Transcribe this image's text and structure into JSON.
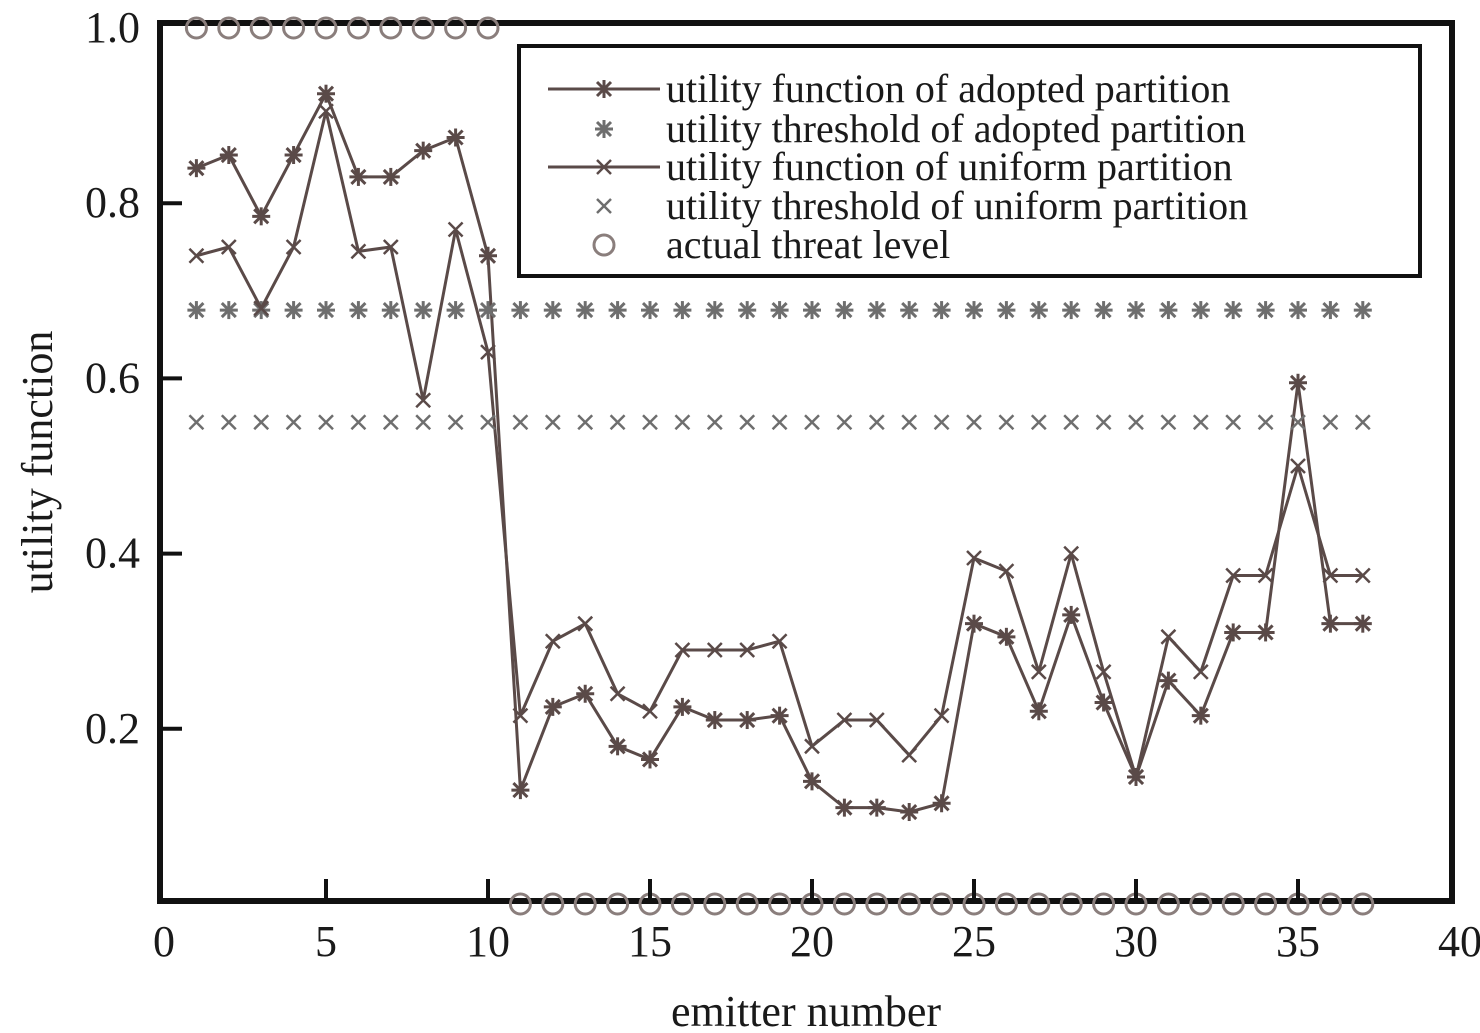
{
  "chart_data": {
    "type": "line",
    "title": "",
    "xlabel": "emitter number",
    "ylabel": "utility function",
    "xlim": [
      0,
      40
    ],
    "ylim": [
      0,
      1.0
    ],
    "xticks": [
      "0",
      "5",
      "10",
      "15",
      "20",
      "25",
      "30",
      "35",
      "40"
    ],
    "yticks": [
      "0.2",
      "0.4",
      "0.6",
      "0.8",
      "1.0"
    ],
    "grid": false,
    "legend_position": "top-right",
    "colors": {
      "line": "#5a4a48",
      "threshold": "#6e6e6e",
      "threat": "#8a7e7c",
      "axis": "#111111"
    },
    "series": [
      {
        "name": "utility function of adopted partition",
        "marker": "asterisk",
        "line": true,
        "x": [
          1,
          2,
          3,
          4,
          5,
          6,
          7,
          8,
          9,
          10,
          11,
          12,
          13,
          14,
          15,
          16,
          17,
          18,
          19,
          20,
          21,
          22,
          23,
          24,
          25,
          26,
          27,
          28,
          29,
          30,
          31,
          32,
          33,
          34,
          35,
          36,
          37
        ],
        "y": [
          0.84,
          0.855,
          0.785,
          0.855,
          0.925,
          0.83,
          0.83,
          0.86,
          0.875,
          0.74,
          0.13,
          0.225,
          0.24,
          0.18,
          0.165,
          0.225,
          0.21,
          0.21,
          0.215,
          0.14,
          0.11,
          0.11,
          0.105,
          0.115,
          0.32,
          0.305,
          0.22,
          0.33,
          0.23,
          0.145,
          0.255,
          0.215,
          0.31,
          0.31,
          0.595,
          0.32,
          0.32
        ]
      },
      {
        "name": "utility threshold of adopted partition",
        "marker": "asterisk",
        "line": false,
        "x": [
          1,
          2,
          3,
          4,
          5,
          6,
          7,
          8,
          9,
          10,
          11,
          12,
          13,
          14,
          15,
          16,
          17,
          18,
          19,
          20,
          21,
          22,
          23,
          24,
          25,
          26,
          27,
          28,
          29,
          30,
          31,
          32,
          33,
          34,
          35,
          36,
          37
        ],
        "y": [
          0.678,
          0.678,
          0.678,
          0.678,
          0.678,
          0.678,
          0.678,
          0.678,
          0.678,
          0.678,
          0.678,
          0.678,
          0.678,
          0.678,
          0.678,
          0.678,
          0.678,
          0.678,
          0.678,
          0.678,
          0.678,
          0.678,
          0.678,
          0.678,
          0.678,
          0.678,
          0.678,
          0.678,
          0.678,
          0.678,
          0.678,
          0.678,
          0.678,
          0.678,
          0.678,
          0.678,
          0.678
        ]
      },
      {
        "name": "utility function of uniform partition",
        "marker": "x",
        "line": true,
        "x": [
          1,
          2,
          3,
          4,
          5,
          6,
          7,
          8,
          9,
          10,
          11,
          12,
          13,
          14,
          15,
          16,
          17,
          18,
          19,
          20,
          21,
          22,
          23,
          24,
          25,
          26,
          27,
          28,
          29,
          30,
          31,
          32,
          33,
          34,
          35,
          36,
          37
        ],
        "y": [
          0.74,
          0.75,
          0.68,
          0.75,
          0.905,
          0.745,
          0.75,
          0.575,
          0.77,
          0.63,
          0.215,
          0.3,
          0.32,
          0.24,
          0.22,
          0.29,
          0.29,
          0.29,
          0.3,
          0.18,
          0.21,
          0.21,
          0.17,
          0.215,
          0.395,
          0.38,
          0.265,
          0.4,
          0.265,
          0.145,
          0.305,
          0.265,
          0.375,
          0.375,
          0.5,
          0.375,
          0.375
        ]
      },
      {
        "name": "utility threshold of uniform partition",
        "marker": "x",
        "line": false,
        "x": [
          1,
          2,
          3,
          4,
          5,
          6,
          7,
          8,
          9,
          10,
          11,
          12,
          13,
          14,
          15,
          16,
          17,
          18,
          19,
          20,
          21,
          22,
          23,
          24,
          25,
          26,
          27,
          28,
          29,
          30,
          31,
          32,
          33,
          34,
          35,
          36,
          37
        ],
        "y": [
          0.55,
          0.55,
          0.55,
          0.55,
          0.55,
          0.55,
          0.55,
          0.55,
          0.55,
          0.55,
          0.55,
          0.55,
          0.55,
          0.55,
          0.55,
          0.55,
          0.55,
          0.55,
          0.55,
          0.55,
          0.55,
          0.55,
          0.55,
          0.55,
          0.55,
          0.55,
          0.55,
          0.55,
          0.55,
          0.55,
          0.55,
          0.55,
          0.55,
          0.55,
          0.55,
          0.55,
          0.55
        ]
      },
      {
        "name": "actual threat level",
        "marker": "circle",
        "line": false,
        "x": [
          1,
          2,
          3,
          4,
          5,
          6,
          7,
          8,
          9,
          10,
          11,
          12,
          13,
          14,
          15,
          16,
          17,
          18,
          19,
          20,
          21,
          22,
          23,
          24,
          25,
          26,
          27,
          28,
          29,
          30,
          31,
          32,
          33,
          34,
          35,
          36,
          37
        ],
        "y": [
          1,
          1,
          1,
          1,
          1,
          1,
          1,
          1,
          1,
          1,
          0,
          0,
          0,
          0,
          0,
          0,
          0,
          0,
          0,
          0,
          0,
          0,
          0,
          0,
          0,
          0,
          0,
          0,
          0,
          0,
          0,
          0,
          0,
          0,
          0,
          0,
          0
        ]
      }
    ]
  }
}
